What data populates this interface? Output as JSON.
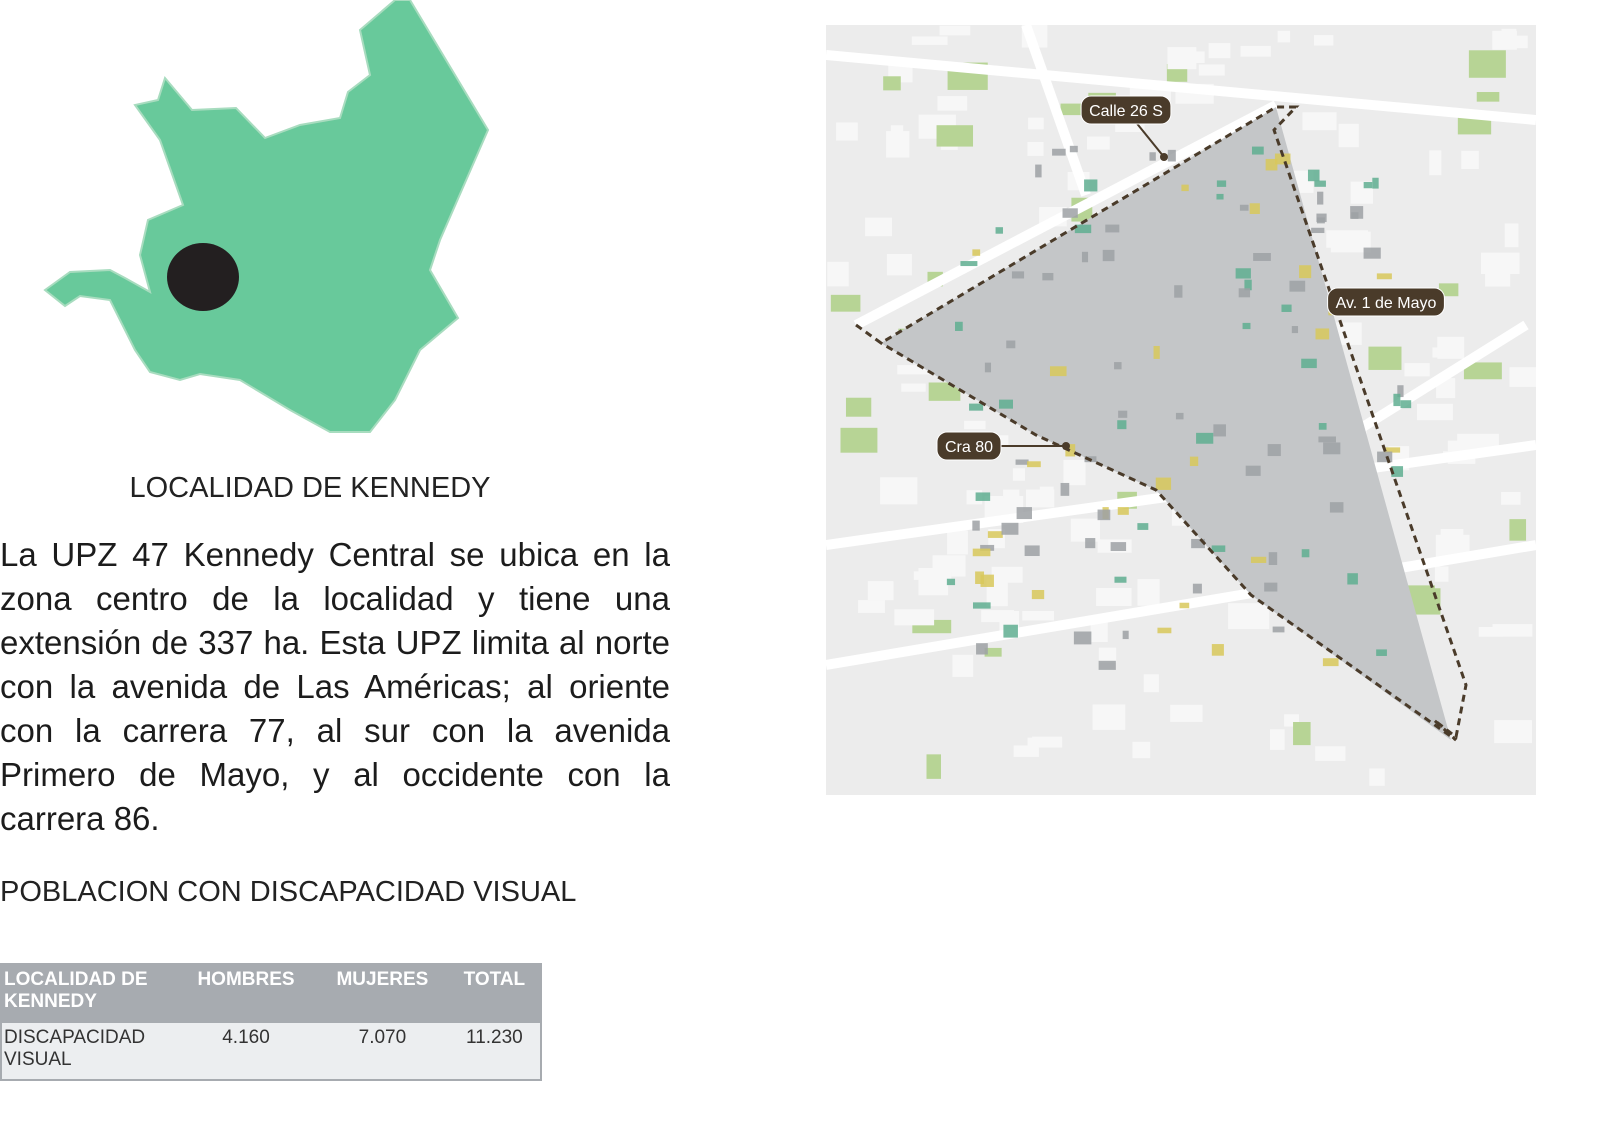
{
  "header": {
    "title": "LOCALIDAD DE KENNEDY"
  },
  "body": {
    "paragraph": "La UPZ 47 Kennedy Central se ubica en la zona centro de la localidad y tiene una extensión de 337 ha. Esta UPZ limita al norte con la avenida de Las Américas; al oriente con la carrera 77, al sur con la avenida Primero de Mayo, y al occidente con la carrera 86.",
    "subtitle": "POBLACION CON DISCAPACIDAD VISUAL"
  },
  "table": {
    "header": [
      "LOCALIDAD DE KENNEDY",
      "HOMBRES",
      "MUJERES",
      "TOTAL"
    ],
    "rows": [
      [
        "DISCAPACIDAD VISUAL",
        "4.160",
        "7.070",
        "11.230"
      ]
    ]
  },
  "map": {
    "labels": [
      "Calle 26 S",
      "Av. 1 de Mayo",
      "Cra 80"
    ]
  }
}
